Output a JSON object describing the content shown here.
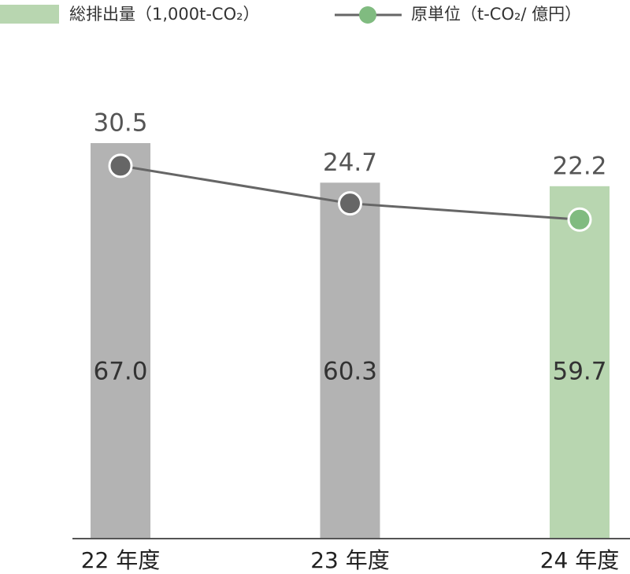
{
  "chart_data": {
    "type": "bar",
    "categories": [
      "22 年度",
      "23 年度",
      "24 年度"
    ],
    "series": [
      {
        "name": "総排出量（1,000t-CO₂）",
        "type": "bar",
        "color": "#b8d6b0",
        "colors": [
          "#b3b3b3",
          "#b3b3b3",
          "#b8d6b0"
        ],
        "values": [
          67.0,
          60.3,
          59.7
        ],
        "value_labels": [
          "67.0",
          "60.3",
          "59.7"
        ]
      },
      {
        "name": "原単位（t-CO₂/ 億円）",
        "type": "line",
        "axis": "y2",
        "color": "#666666",
        "marker_colors": [
          "#666666",
          "#666666",
          "#80bb80"
        ],
        "legend_marker_color": "#80bb80",
        "values": [
          30.5,
          24.7,
          22.2
        ]
      }
    ],
    "ylim": [
      0,
      67
    ],
    "y2lim": [
      -27,
      34
    ],
    "grid": false
  }
}
